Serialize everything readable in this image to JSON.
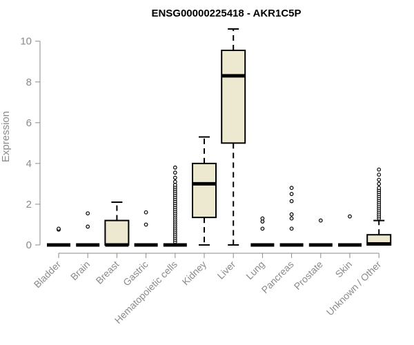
{
  "chart_data": {
    "type": "boxplot",
    "title": "ENSG00000225418 - AKR1C5P",
    "xlabel": "",
    "ylabel": "Expression",
    "ylim": [
      0,
      10.6
    ],
    "yticks": [
      0,
      2,
      4,
      6,
      8,
      10
    ],
    "box_fill": "#ede8d0",
    "categories": [
      "Bladder",
      "Brain",
      "Breast",
      "Gastric",
      "Hematopoietic cells",
      "Kidney",
      "Liver",
      "Lung",
      "Pancreas",
      "Prostate",
      "Skin",
      "Unknown / Other"
    ],
    "boxes": [
      {
        "q1": 0,
        "median": 0,
        "q3": 0,
        "whisker_low": 0,
        "whisker_high": 0,
        "outliers": [
          0.75,
          0.8
        ]
      },
      {
        "q1": 0,
        "median": 0,
        "q3": 0,
        "whisker_low": 0,
        "whisker_high": 0,
        "outliers": [
          0.9,
          1.55
        ]
      },
      {
        "q1": 0,
        "median": 0,
        "q3": 1.2,
        "whisker_low": 0,
        "whisker_high": 2.1,
        "outliers": []
      },
      {
        "q1": 0,
        "median": 0,
        "q3": 0,
        "whisker_low": 0,
        "whisker_high": 0,
        "outliers": [
          1.0,
          1.6
        ]
      },
      {
        "q1": 0,
        "median": 0,
        "q3": 0,
        "whisker_low": 0,
        "whisker_high": 0,
        "outliers": [
          0.15,
          0.25,
          0.35,
          0.45,
          0.55,
          0.65,
          0.75,
          0.85,
          0.95,
          1.05,
          1.15,
          1.25,
          1.35,
          1.45,
          1.55,
          1.65,
          1.75,
          1.85,
          1.95,
          2.05,
          2.15,
          2.25,
          2.35,
          2.45,
          2.55,
          2.65,
          2.75,
          2.85,
          2.95,
          3.1,
          3.3,
          3.55,
          3.8
        ]
      },
      {
        "q1": 1.35,
        "median": 3.0,
        "q3": 4.0,
        "whisker_low": 0,
        "whisker_high": 5.3,
        "outliers": []
      },
      {
        "q1": 5.0,
        "median": 8.3,
        "q3": 9.55,
        "whisker_low": 0,
        "whisker_high": 10.6,
        "outliers": []
      },
      {
        "q1": 0,
        "median": 0,
        "q3": 0,
        "whisker_low": 0,
        "whisker_high": 0,
        "outliers": [
          0.8,
          1.15,
          1.3
        ]
      },
      {
        "q1": 0,
        "median": 0,
        "q3": 0,
        "whisker_low": 0,
        "whisker_high": 0,
        "outliers": [
          0.8,
          1.3,
          1.5,
          2.15,
          2.5,
          2.8
        ]
      },
      {
        "q1": 0,
        "median": 0,
        "q3": 0,
        "whisker_low": 0,
        "whisker_high": 0,
        "outliers": [
          1.2
        ]
      },
      {
        "q1": 0,
        "median": 0,
        "q3": 0,
        "whisker_low": 0,
        "whisker_high": 0,
        "outliers": [
          1.4
        ]
      },
      {
        "q1": 0,
        "median": 0.05,
        "q3": 0.5,
        "whisker_low": 0,
        "whisker_high": 1.2,
        "outliers": [
          1.3,
          1.4,
          1.5,
          1.6,
          1.7,
          1.8,
          1.9,
          2.0,
          2.1,
          2.2,
          2.3,
          2.4,
          2.5,
          2.6,
          2.7,
          2.8,
          3.0,
          3.2,
          3.45,
          3.7
        ]
      }
    ]
  }
}
